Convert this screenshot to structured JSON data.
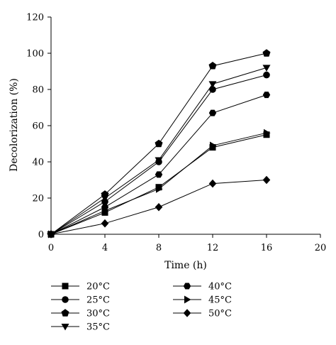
{
  "chart_data": {
    "type": "line",
    "title": "",
    "xlabel": "Time (h)",
    "ylabel": "Decolorization (%)",
    "xlim": [
      0,
      20
    ],
    "ylim": [
      0,
      120
    ],
    "xticks": [
      "0",
      "4",
      "8",
      "12",
      "16",
      "20"
    ],
    "yticks": [
      "0",
      "20",
      "40",
      "60",
      "80",
      "100",
      "120"
    ],
    "x": [
      0,
      4,
      8,
      12,
      16
    ],
    "grid": false,
    "legend_position": "bottom",
    "series": [
      {
        "name": "20°C",
        "marker": "square",
        "values": [
          0,
          12,
          26,
          48,
          55
        ]
      },
      {
        "name": "25°C",
        "marker": "circle",
        "values": [
          0,
          18,
          40,
          80,
          88
        ]
      },
      {
        "name": "30°C",
        "marker": "pentagon",
        "values": [
          0,
          22,
          50,
          93,
          100
        ]
      },
      {
        "name": "35°C",
        "marker": "triangle-down",
        "values": [
          0,
          20,
          41,
          83,
          92
        ]
      },
      {
        "name": "40°C",
        "marker": "hexagon",
        "values": [
          0,
          15,
          33,
          67,
          77
        ]
      },
      {
        "name": "45°C",
        "marker": "triangle-right",
        "values": [
          0,
          13,
          25,
          49,
          56
        ]
      },
      {
        "name": "50°C",
        "marker": "diamond",
        "values": [
          0,
          6,
          15,
          28,
          30
        ]
      }
    ]
  }
}
